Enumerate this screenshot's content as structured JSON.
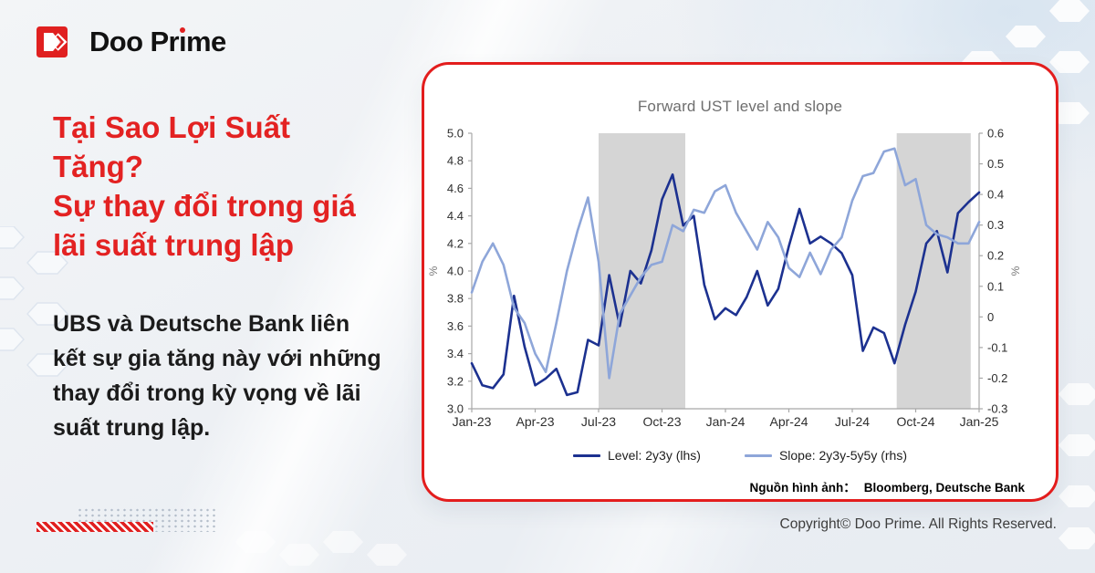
{
  "brand": {
    "name_before": "Doo Pr",
    "name_i": "ı",
    "name_after": "me"
  },
  "headline": "Tại Sao Lợi Suất\nTăng?\nSự thay đổi trong giá\nlãi suất trung lập",
  "body_text": "UBS và Deutsche Bank liên\nkết sự gia tăng này với những\nthay đổi trong kỳ vọng về lãi\nsuất trung lập.",
  "source_note": {
    "label": "Nguồn hình ảnh：",
    "value": "Bloomberg, Deutsche Bank"
  },
  "copyright": "Copyright© Doo Prime. All Rights Reserved.",
  "colors": {
    "accent_red": "#e02020",
    "card_border": "#e31d1d",
    "level_navy": "#1c3190",
    "slope_blue": "#8ea6d9",
    "band_gray": "#d5d5d5",
    "chart_title_gray": "#6e6e6e"
  },
  "chart_data": {
    "type": "line",
    "title": "Forward UST level and slope",
    "x_tick_labels": [
      "Jan-23",
      "Apr-23",
      "Jul-23",
      "Oct-23",
      "Jan-24",
      "Apr-24",
      "Jul-24",
      "Oct-24",
      "Jan-25"
    ],
    "x_tick_months": [
      0,
      3,
      6,
      9,
      12,
      15,
      18,
      21,
      24
    ],
    "x_total_months": 24,
    "x_sample_interval_months": 0.5,
    "left_axis": {
      "label": "%",
      "min": 3.0,
      "max": 5.0,
      "tick_labels": [
        "5.0",
        "4.8",
        "4.6",
        "4.4",
        "4.2",
        "4.0",
        "3.8",
        "3.6",
        "3.4",
        "3.2",
        "3.0"
      ]
    },
    "right_axis": {
      "label": "%",
      "min": -0.3,
      "max": 0.6,
      "tick_labels": [
        "0.6",
        "0.5",
        "0.4",
        "0.3",
        "0.2",
        "0.1",
        "0",
        "-0.1",
        "-0.2",
        "-0.3"
      ]
    },
    "shaded_bands_months": [
      [
        6.0,
        10.1
      ],
      [
        20.1,
        23.6
      ]
    ],
    "band_color": "#d5d5d5",
    "grid": "off",
    "legend_position": "bottom",
    "series": [
      {
        "name": "Level: 2y3y (lhs)",
        "axis": "left",
        "color": "#1c3190",
        "values": [
          3.33,
          3.17,
          3.15,
          3.25,
          3.82,
          3.45,
          3.17,
          3.22,
          3.29,
          3.1,
          3.12,
          3.5,
          3.46,
          3.97,
          3.6,
          4.0,
          3.91,
          4.15,
          4.52,
          4.7,
          4.33,
          4.4,
          3.9,
          3.65,
          3.73,
          3.68,
          3.81,
          4.0,
          3.75,
          3.87,
          4.18,
          4.45,
          4.2,
          4.25,
          4.2,
          4.13,
          3.97,
          3.42,
          3.59,
          3.55,
          3.33,
          3.61,
          3.85,
          4.2,
          4.29,
          3.99,
          4.42,
          4.5,
          4.57
        ]
      },
      {
        "name": "Slope: 2y3y-5y5y (rhs)",
        "axis": "right",
        "color": "#8ea6d9",
        "values": [
          0.08,
          0.18,
          0.24,
          0.17,
          0.03,
          -0.02,
          -0.12,
          -0.18,
          -0.02,
          0.15,
          0.28,
          0.39,
          0.18,
          -0.2,
          0.01,
          0.07,
          0.13,
          0.17,
          0.18,
          0.3,
          0.28,
          0.35,
          0.34,
          0.41,
          0.43,
          0.34,
          0.28,
          0.22,
          0.31,
          0.26,
          0.16,
          0.13,
          0.21,
          0.14,
          0.22,
          0.26,
          0.38,
          0.46,
          0.47,
          0.54,
          0.55,
          0.43,
          0.45,
          0.3,
          0.27,
          0.26,
          0.24,
          0.24,
          0.31
        ]
      }
    ]
  }
}
